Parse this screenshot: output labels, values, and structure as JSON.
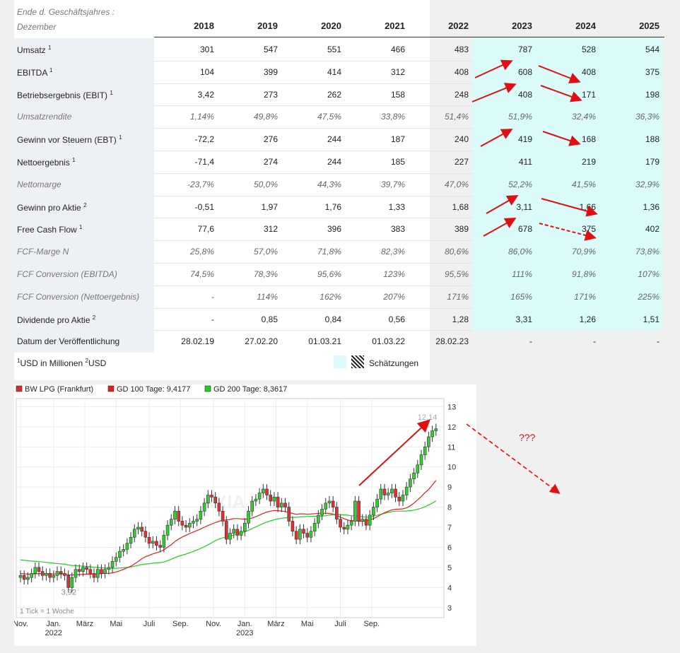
{
  "table": {
    "header_line1": "Ende d. Geschäftsjahres :",
    "header_line2": "Dezember",
    "years": [
      "2018",
      "2019",
      "2020",
      "2021",
      "2022",
      "2023",
      "2024",
      "2025"
    ],
    "rows": [
      {
        "label": "Umsatz",
        "sup": "1",
        "italic": false,
        "values": [
          "301",
          "547",
          "551",
          "466",
          "483",
          "787",
          "528",
          "544"
        ]
      },
      {
        "label": "EBITDA",
        "sup": "1",
        "italic": false,
        "values": [
          "104",
          "399",
          "414",
          "312",
          "408",
          "608",
          "408",
          "375"
        ]
      },
      {
        "label": "Betriebsergebnis (EBIT)",
        "sup": "1",
        "italic": false,
        "values": [
          "3,42",
          "273",
          "262",
          "158",
          "248",
          "408",
          "171",
          "198"
        ]
      },
      {
        "label": "Umsatzrendite",
        "sup": "",
        "italic": true,
        "values": [
          "1,14%",
          "49,8%",
          "47,5%",
          "33,8%",
          "51,4%",
          "51,9%",
          "32,4%",
          "36,3%"
        ]
      },
      {
        "label": "Gewinn vor Steuern (EBT)",
        "sup": "1",
        "italic": false,
        "values": [
          "-72,2",
          "276",
          "244",
          "187",
          "240",
          "419",
          "168",
          "188"
        ]
      },
      {
        "label": "Nettoergebnis",
        "sup": "1",
        "italic": false,
        "values": [
          "-71,4",
          "274",
          "244",
          "185",
          "227",
          "411",
          "219",
          "179"
        ]
      },
      {
        "label": "Nettomarge",
        "sup": "",
        "italic": true,
        "values": [
          "-23,7%",
          "50,0%",
          "44,3%",
          "39,7%",
          "47,0%",
          "52,2%",
          "41,5%",
          "32,9%"
        ]
      },
      {
        "label": "Gewinn pro Aktie",
        "sup": "2",
        "italic": false,
        "values": [
          "-0,51",
          "1,97",
          "1,76",
          "1,33",
          "1,68",
          "3,11",
          "1,66",
          "1,36"
        ]
      },
      {
        "label": "Free Cash Flow",
        "sup": "1",
        "italic": false,
        "values": [
          "77,6",
          "312",
          "396",
          "383",
          "389",
          "678",
          "375",
          "402"
        ]
      },
      {
        "label": "FCF-Marge N",
        "sup": "",
        "italic": true,
        "values": [
          "25,8%",
          "57,0%",
          "71,8%",
          "82,3%",
          "80,6%",
          "86,0%",
          "70,9%",
          "73,8%"
        ]
      },
      {
        "label": "FCF Conversion (EBITDA)",
        "sup": "",
        "italic": true,
        "values": [
          "74,5%",
          "78,3%",
          "95,6%",
          "123%",
          "95,5%",
          "111%",
          "91,8%",
          "107%"
        ]
      },
      {
        "label": "FCF Conversion (Nettoergebnis)",
        "sup": "",
        "italic": true,
        "values": [
          "-",
          "114%",
          "162%",
          "207%",
          "171%",
          "165%",
          "171%",
          "225%"
        ]
      },
      {
        "label": "Dividende pro Aktie",
        "sup": "2",
        "italic": false,
        "values": [
          "-",
          "0,85",
          "0,84",
          "0,56",
          "1,28",
          "3,31",
          "1,26",
          "1,51"
        ]
      },
      {
        "label": "Datum der Veröffentlichung",
        "sup": "",
        "italic": false,
        "values": [
          "28.02.19",
          "27.02.20",
          "01.03.21",
          "01.03.22",
          "28.02.23",
          "-",
          "-",
          "-"
        ]
      }
    ],
    "footnote_1_sup": "1",
    "footnote_1": "USD in Millionen",
    "footnote_2_sup": "2",
    "footnote_2": "USD",
    "legend_estimates": "Schätzungen"
  },
  "chart_data": {
    "type": "candlestick",
    "legend": [
      {
        "name": "BW LPG (Frankfurt)",
        "color": "#d03030"
      },
      {
        "name": "GD 100 Tage: 9,4177",
        "color": "#e02020"
      },
      {
        "name": "GD 200 Tage: 8,3617",
        "color": "#22cc22"
      }
    ],
    "ylim": [
      2.5,
      13.4
    ],
    "yticks": [
      "3",
      "4",
      "5",
      "6",
      "7",
      "8",
      "9",
      "10",
      "11",
      "12",
      "13"
    ],
    "xticks": [
      {
        "label": "Nov.",
        "w": 0
      },
      {
        "label": "Jan.",
        "sub": "2022",
        "w": 9
      },
      {
        "label": "März",
        "w": 17.5
      },
      {
        "label": "Mai",
        "w": 26
      },
      {
        "label": "Juli",
        "w": 35
      },
      {
        "label": "Sep.",
        "w": 43.5
      },
      {
        "label": "Nov.",
        "w": 52.5
      },
      {
        "label": "Jan.",
        "sub": "2023",
        "w": 61
      },
      {
        "label": "März",
        "w": 69.5
      },
      {
        "label": "Mai",
        "w": 78
      },
      {
        "label": "Juli",
        "w": 87
      },
      {
        "label": "Sep.",
        "w": 95.5
      }
    ],
    "min_label": "3,92",
    "max_label": "12,14",
    "tick_note": "1 Tick = 1 Woche",
    "watermark": "AXIA",
    "annotation": "???",
    "closes": [
      4.6,
      4.4,
      4.5,
      4.7,
      5.0,
      4.8,
      4.6,
      4.7,
      4.5,
      4.6,
      4.8,
      4.7,
      4.6,
      4.0,
      4.5,
      4.9,
      4.8,
      5.0,
      4.9,
      4.7,
      4.5,
      4.9,
      4.7,
      4.9,
      5.0,
      5.3,
      5.5,
      5.8,
      5.9,
      6.2,
      6.5,
      6.9,
      7.0,
      6.8,
      6.5,
      6.2,
      6.3,
      6.1,
      6.0,
      6.6,
      7.1,
      7.4,
      7.8,
      7.3,
      7.1,
      7.0,
      7.2,
      7.3,
      7.4,
      7.8,
      8.2,
      8.6,
      8.5,
      8.2,
      7.8,
      7.3,
      6.4,
      6.7,
      6.9,
      6.6,
      6.8,
      7.2,
      7.8,
      8.3,
      8.4,
      8.7,
      8.9,
      8.6,
      8.3,
      8.5,
      8.0,
      8.2,
      8.0,
      7.3,
      6.8,
      6.4,
      6.9,
      6.7,
      6.5,
      6.8,
      7.2,
      7.6,
      7.9,
      8.2,
      8.3,
      8.0,
      7.4,
      7.0,
      6.9,
      7.1,
      7.3,
      8.3,
      7.3,
      7.4,
      7.1,
      7.6,
      8.0,
      8.4,
      8.9,
      8.6,
      8.7,
      8.9,
      8.5,
      8.3,
      8.6,
      9.0,
      9.4,
      9.7,
      10.1,
      10.6,
      11.0,
      11.5,
      11.8,
      11.9
    ]
  }
}
